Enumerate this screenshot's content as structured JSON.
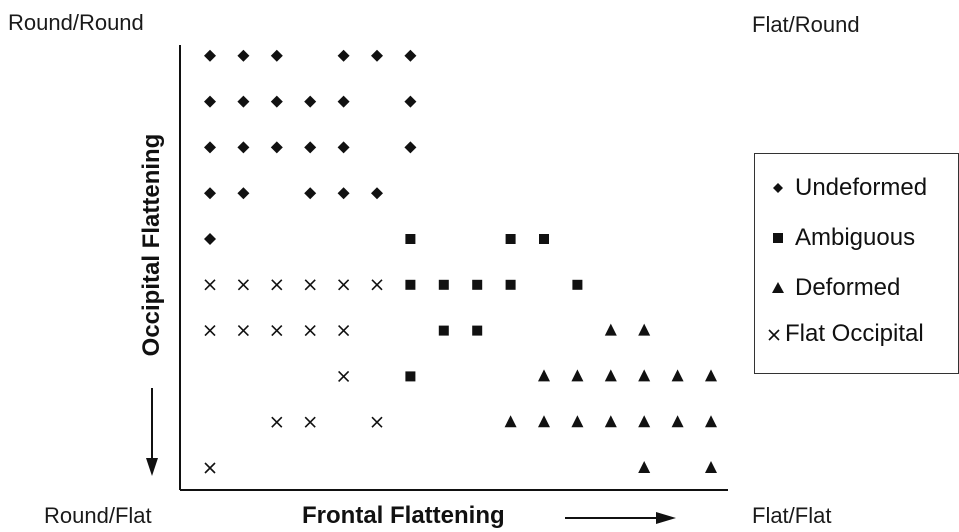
{
  "corners": {
    "top_left": "Round/Round",
    "top_right": "Flat/Round",
    "bottom_left": "Round/Flat",
    "bottom_right": "Flat/Flat"
  },
  "chart_data": {
    "type": "scatter",
    "xlabel": "Frontal Flattening",
    "ylabel": "Occipital Flattening",
    "xlim": [
      1,
      16
    ],
    "ylim": [
      1,
      10
    ],
    "grid": false,
    "legend_position": "right",
    "series": [
      {
        "name": "Undeformed",
        "marker": "diamond",
        "points": [
          [
            1,
            10
          ],
          [
            2,
            10
          ],
          [
            3,
            10
          ],
          [
            5,
            10
          ],
          [
            6,
            10
          ],
          [
            7,
            10
          ],
          [
            1,
            9
          ],
          [
            2,
            9
          ],
          [
            3,
            9
          ],
          [
            4,
            9
          ],
          [
            5,
            9
          ],
          [
            7,
            9
          ],
          [
            1,
            8
          ],
          [
            2,
            8
          ],
          [
            3,
            8
          ],
          [
            4,
            8
          ],
          [
            5,
            8
          ],
          [
            7,
            8
          ],
          [
            1,
            7
          ],
          [
            2,
            7
          ],
          [
            4,
            7
          ],
          [
            5,
            7
          ],
          [
            6,
            7
          ],
          [
            1,
            6
          ]
        ]
      },
      {
        "name": "Ambiguous",
        "marker": "square",
        "points": [
          [
            7,
            6
          ],
          [
            10,
            6
          ],
          [
            11,
            6
          ],
          [
            7,
            5
          ],
          [
            8,
            5
          ],
          [
            9,
            5
          ],
          [
            10,
            5
          ],
          [
            12,
            5
          ],
          [
            8,
            4
          ],
          [
            9,
            4
          ],
          [
            7,
            3
          ]
        ]
      },
      {
        "name": "Deformed",
        "marker": "triangle",
        "points": [
          [
            13,
            4
          ],
          [
            14,
            4
          ],
          [
            11,
            3
          ],
          [
            12,
            3
          ],
          [
            13,
            3
          ],
          [
            14,
            3
          ],
          [
            15,
            3
          ],
          [
            16,
            3
          ],
          [
            10,
            2
          ],
          [
            11,
            2
          ],
          [
            12,
            2
          ],
          [
            13,
            2
          ],
          [
            14,
            2
          ],
          [
            15,
            2
          ],
          [
            16,
            2
          ],
          [
            14,
            1
          ],
          [
            16,
            1
          ]
        ]
      },
      {
        "name": "Flat Occipital",
        "marker": "x",
        "points": [
          [
            1,
            5
          ],
          [
            2,
            5
          ],
          [
            3,
            5
          ],
          [
            4,
            5
          ],
          [
            5,
            5
          ],
          [
            6,
            5
          ],
          [
            1,
            4
          ],
          [
            2,
            4
          ],
          [
            3,
            4
          ],
          [
            4,
            4
          ],
          [
            5,
            4
          ],
          [
            5,
            3
          ],
          [
            3,
            2
          ],
          [
            4,
            2
          ],
          [
            6,
            2
          ],
          [
            1,
            1
          ]
        ]
      }
    ]
  }
}
